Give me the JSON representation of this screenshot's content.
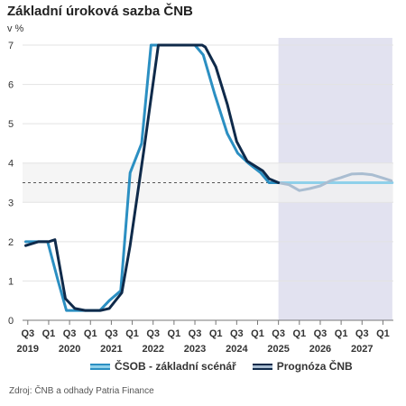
{
  "title": "Základní úroková sazba ČNB",
  "unit": "v %",
  "source": "Zdroj: ČNB a odhady Patria Finance",
  "legend": {
    "csob": "ČSOB - základní scénář",
    "cnb": "Prognóza ČNB"
  },
  "colors": {
    "csob_line": "#2b8fc2",
    "csob_forecast": "#8fd0ea",
    "cnb_line": "#0f2a4a",
    "cnb_forecast": "#a9bdd1",
    "forecast_shade": "#e2e2f0",
    "band_shade": "#f1f1f1",
    "reference_line": "#555555"
  },
  "chart_data": {
    "type": "line",
    "x_unit": "quarter index from 2019 Q2",
    "xlim": [
      1,
      36
    ],
    "ylim": [
      0,
      7
    ],
    "yticks": [
      0,
      1,
      2,
      3,
      4,
      5,
      6,
      7
    ],
    "x_ticks": [
      {
        "x": 1,
        "quarter": "Q3",
        "year": "2019"
      },
      {
        "x": 3,
        "quarter": "Q1",
        "year": ""
      },
      {
        "x": 5,
        "quarter": "Q3",
        "year": "2020"
      },
      {
        "x": 7,
        "quarter": "Q1",
        "year": ""
      },
      {
        "x": 9,
        "quarter": "Q3",
        "year": "2021"
      },
      {
        "x": 11,
        "quarter": "Q1",
        "year": ""
      },
      {
        "x": 13,
        "quarter": "Q3",
        "year": "2022"
      },
      {
        "x": 15,
        "quarter": "Q1",
        "year": ""
      },
      {
        "x": 17,
        "quarter": "Q3",
        "year": "2023"
      },
      {
        "x": 19,
        "quarter": "Q1",
        "year": ""
      },
      {
        "x": 21,
        "quarter": "Q3",
        "year": "2024"
      },
      {
        "x": 23,
        "quarter": "Q1",
        "year": ""
      },
      {
        "x": 25,
        "quarter": "Q3",
        "year": "2025"
      },
      {
        "x": 27,
        "quarter": "Q1",
        "year": ""
      },
      {
        "x": 29,
        "quarter": "Q3",
        "year": "2026"
      },
      {
        "x": 31,
        "quarter": "Q1",
        "year": ""
      },
      {
        "x": 33,
        "quarter": "Q3",
        "year": "2027"
      },
      {
        "x": 35,
        "quarter": "Q1",
        "year": ""
      }
    ],
    "forecast_region": [
      25,
      35.9
    ],
    "band": [
      3,
      4
    ],
    "reference_line": 3.5,
    "series": [
      {
        "name": "ČSOB - základní scénář",
        "history": [
          [
            0.8,
            2
          ],
          [
            2,
            2
          ],
          [
            2.9,
            2
          ],
          [
            3.9,
            1
          ],
          [
            4.7,
            0.25
          ],
          [
            5.8,
            0.25
          ],
          [
            7.9,
            0.25
          ],
          [
            8.8,
            0.5
          ],
          [
            9.9,
            0.75
          ],
          [
            10.8,
            3.75
          ],
          [
            11.9,
            4.5
          ],
          [
            12.8,
            7
          ],
          [
            14,
            7
          ],
          [
            15,
            7
          ],
          [
            16.4,
            7
          ],
          [
            17,
            7
          ],
          [
            17.8,
            6.75
          ],
          [
            18.9,
            5.75
          ],
          [
            20.1,
            4.75
          ],
          [
            21.1,
            4.25
          ],
          [
            22.1,
            4
          ],
          [
            23.3,
            3.75
          ],
          [
            24.1,
            3.5
          ],
          [
            25,
            3.5
          ]
        ],
        "forecast": [
          [
            25,
            3.5
          ],
          [
            35.9,
            3.5
          ]
        ]
      },
      {
        "name": "Prognóza ČNB",
        "history": [
          [
            0.8,
            1.9
          ],
          [
            2,
            2
          ],
          [
            3,
            2
          ],
          [
            3.6,
            2.05
          ],
          [
            4.6,
            0.55
          ],
          [
            5.5,
            0.3
          ],
          [
            6.5,
            0.25
          ],
          [
            8,
            0.25
          ],
          [
            8.8,
            0.3
          ],
          [
            10,
            0.7
          ],
          [
            10.8,
            1.9
          ],
          [
            12.1,
            4.3
          ],
          [
            13.5,
            7
          ],
          [
            14.8,
            7
          ],
          [
            16.5,
            7
          ],
          [
            17.7,
            7
          ],
          [
            18,
            6.95
          ],
          [
            19,
            6.45
          ],
          [
            20.1,
            5.5
          ],
          [
            21,
            4.55
          ],
          [
            22,
            4.05
          ],
          [
            23.5,
            3.8
          ],
          [
            24.1,
            3.6
          ],
          [
            25,
            3.5
          ]
        ],
        "forecast": [
          [
            25,
            3.5
          ],
          [
            26,
            3.45
          ],
          [
            27,
            3.3
          ],
          [
            28,
            3.35
          ],
          [
            29,
            3.42
          ],
          [
            30,
            3.55
          ],
          [
            31,
            3.63
          ],
          [
            32,
            3.72
          ],
          [
            33,
            3.73
          ],
          [
            34,
            3.7
          ],
          [
            35,
            3.62
          ],
          [
            35.8,
            3.55
          ]
        ]
      }
    ]
  }
}
